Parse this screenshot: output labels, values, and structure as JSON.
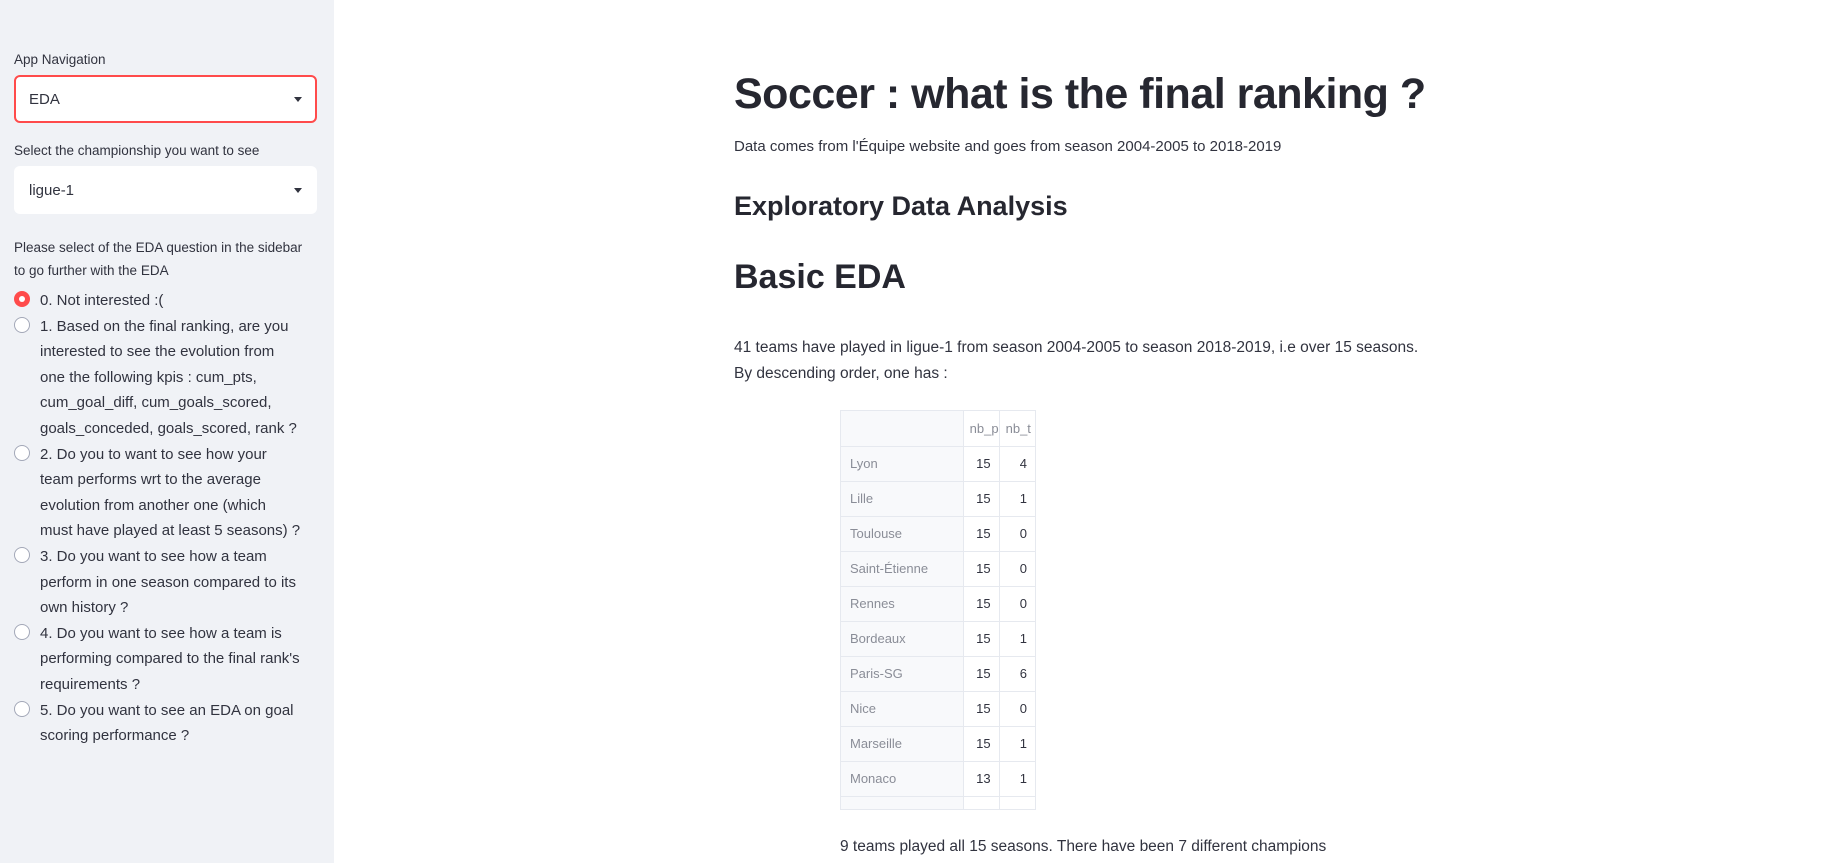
{
  "sidebar": {
    "nav_label": "App Navigation",
    "nav_value": "EDA",
    "championship_label": "Select the championship you want to see",
    "championship_value": "ligue-1",
    "eda_intro": "Please select of the EDA question in the sidebar to go further with the EDA",
    "options": [
      {
        "label": "0. Not interested :(",
        "checked": true
      },
      {
        "label": "1. Based on the final ranking, are you interested to see the evolution from one the following kpis : cum_pts, cum_goal_diff, cum_goals_scored, goals_conceded, goals_scored, rank ?",
        "checked": false
      },
      {
        "label": "2. Do you to want to see how your team performs wrt to the average evolution from another one (which must have played at least 5 seasons) ?",
        "checked": false
      },
      {
        "label": "3. Do you want to see how a team perform in one season compared to its own history ?",
        "checked": false
      },
      {
        "label": "4. Do you want to see how a team is performing compared to the final rank's requirements ?",
        "checked": false
      },
      {
        "label": "5. Do you want to see an EDA on goal scoring performance ?",
        "checked": false
      }
    ]
  },
  "main": {
    "title": "Soccer : what is the final ranking ?",
    "source": "Data comes from l'Équipe website and goes from season 2004-2005 to 2018-2019",
    "subtitle": "Exploratory Data Analysis",
    "section": "Basic EDA",
    "paragraph": "41 teams have played in ligue-1 from season 2004-2005 to season 2018-2019, i.e over 15 seasons. By descending order, one has :",
    "table": {
      "columns": [
        "nb_p",
        "nb_t"
      ],
      "rows": [
        [
          "Lyon",
          "15",
          "4"
        ],
        [
          "Lille",
          "15",
          "1"
        ],
        [
          "Toulouse",
          "15",
          "0"
        ],
        [
          "Saint-Étienne",
          "15",
          "0"
        ],
        [
          "Rennes",
          "15",
          "0"
        ],
        [
          "Bordeaux",
          "15",
          "1"
        ],
        [
          "Paris-SG",
          "15",
          "6"
        ],
        [
          "Nice",
          "15",
          "0"
        ],
        [
          "Marseille",
          "15",
          "1"
        ],
        [
          "Monaco",
          "13",
          "1"
        ]
      ]
    },
    "footer": "9 teams played all 15 seasons. There have been 7 different champions"
  },
  "colors": {
    "accent": "#ff4b4b",
    "sidebar_bg": "#f0f2f6",
    "text": "#262730"
  }
}
